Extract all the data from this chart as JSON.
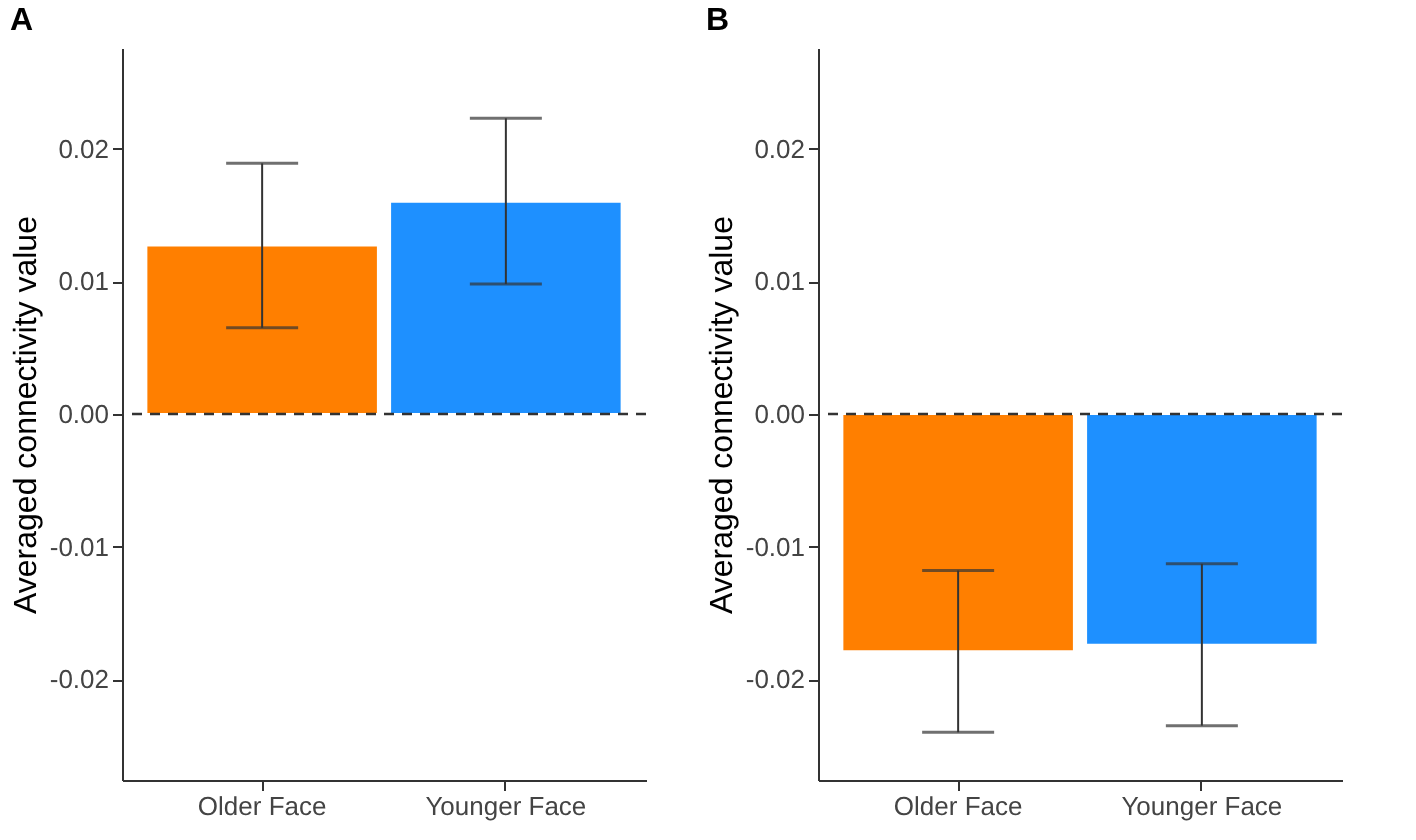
{
  "chart_data": [
    {
      "type": "bar",
      "title": "A",
      "ylabel": "Averaged connectivity value",
      "categories": [
        "Older Face",
        "Younger Face"
      ],
      "values": [
        0.0127,
        0.016
      ],
      "colors": [
        "#ff7f00",
        "#1e90ff"
      ],
      "errors": [
        [
          0.0065,
          0.0189
        ],
        [
          0.0098,
          0.0223
        ]
      ],
      "ylim": [
        -0.0276,
        0.0276
      ],
      "yticks": [
        {
          "value": -0.02,
          "label": "-0.02"
        },
        {
          "value": -0.01,
          "label": "-0.01"
        },
        {
          "value": 0,
          "label": "0.00"
        },
        {
          "value": 0.01,
          "label": "0.01"
        },
        {
          "value": 0.02,
          "label": "0.02"
        }
      ],
      "ref_lines": [
        {
          "axis": "y",
          "value": 0,
          "line_style": "dashed"
        }
      ],
      "grid": false
    },
    {
      "type": "bar",
      "title": "B",
      "ylabel": "Averaged connectivity value",
      "categories": [
        "Older Face",
        "Younger Face"
      ],
      "values": [
        -0.0179,
        -0.0174
      ],
      "colors": [
        "#ff7f00",
        "#1e90ff"
      ],
      "errors": [
        [
          -0.024,
          -0.0118
        ],
        [
          -0.0235,
          -0.0113
        ]
      ],
      "ylim": [
        -0.0276,
        0.0276
      ],
      "yticks": [
        {
          "value": -0.02,
          "label": "-0.02"
        },
        {
          "value": -0.01,
          "label": "-0.01"
        },
        {
          "value": 0,
          "label": "0.00"
        },
        {
          "value": 0.01,
          "label": "0.01"
        },
        {
          "value": 0.02,
          "label": "0.02"
        }
      ],
      "ref_lines": [
        {
          "axis": "y",
          "value": 0,
          "line_style": "dashed"
        }
      ],
      "grid": false
    }
  ]
}
